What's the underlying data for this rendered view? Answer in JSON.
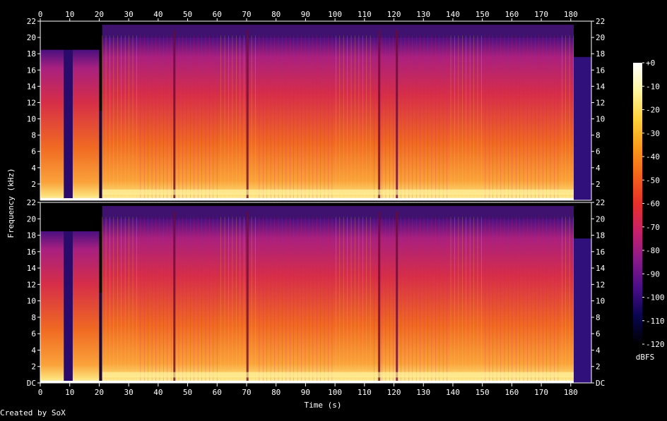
{
  "chart_data": {
    "type": "heatmap",
    "title": "",
    "xlabel": "Time (s)",
    "ylabel": "Frequency (kHz)",
    "x_ticks": [
      0,
      10,
      20,
      30,
      40,
      50,
      60,
      70,
      80,
      90,
      100,
      110,
      120,
      130,
      140,
      150,
      160,
      170,
      180
    ],
    "xlim": [
      0,
      187
    ],
    "y_ticks": [
      "DC",
      "2",
      "4",
      "6",
      "8",
      "10",
      "12",
      "14",
      "16",
      "18",
      "20",
      "22"
    ],
    "y_tick_values": [
      0,
      2,
      4,
      6,
      8,
      10,
      12,
      14,
      16,
      18,
      20,
      22
    ],
    "ylim": [
      0,
      22
    ],
    "channels": [
      {
        "name": "",
        "top_tick_label": "22",
        "bottom_tick_label": "22"
      },
      {
        "name": "",
        "top_tick_label": "22",
        "bottom_tick_label": "DC"
      }
    ],
    "colorbar": {
      "label": "dBFS",
      "ticks": [
        "+0",
        "-10",
        "-20",
        "-30",
        "-40",
        "-50",
        "-60",
        "-70",
        "-80",
        "-90",
        "-100",
        "-110",
        "-120"
      ],
      "range": [
        -120,
        0
      ],
      "colors": [
        "#000000",
        "#0a0550",
        "#4a0d8a",
        "#8a1a8a",
        "#c8206a",
        "#e8302a",
        "#f5641a",
        "#fa9a1a",
        "#fdd23a",
        "#fff5a0",
        "#ffffff"
      ]
    },
    "segments_seconds": [
      {
        "start": 0,
        "end": 8,
        "level": "mid"
      },
      {
        "start": 8,
        "end": 11,
        "level": "quiet"
      },
      {
        "start": 11,
        "end": 20,
        "level": "mid"
      },
      {
        "start": 20,
        "end": 21,
        "level": "dip"
      },
      {
        "start": 21,
        "end": 181,
        "level": "loud"
      },
      {
        "start": 181,
        "end": 187,
        "level": "fade"
      }
    ]
  },
  "footer": {
    "credit": "Created by SoX"
  }
}
